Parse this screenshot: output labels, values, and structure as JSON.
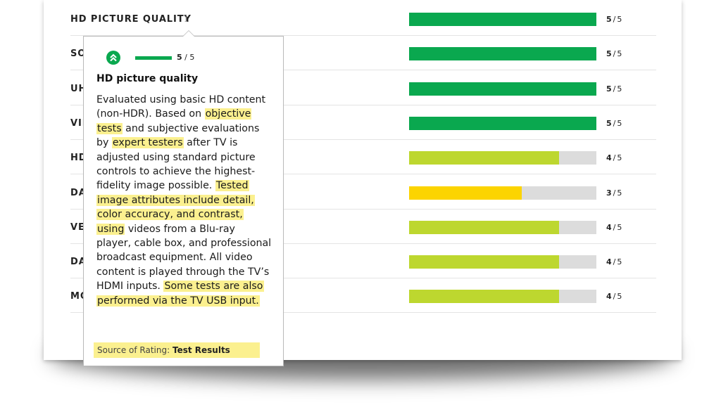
{
  "ratings": [
    {
      "label": "HD PICTURE QUALITY",
      "score": 5,
      "max": 5,
      "color": "#0aa84f"
    },
    {
      "label": "SO",
      "score": 5,
      "max": 5,
      "color": "#0aa84f"
    },
    {
      "label": "UH",
      "score": 5,
      "max": 5,
      "color": "#0aa84f"
    },
    {
      "label": "VIE",
      "score": 5,
      "max": 5,
      "color": "#0aa84f"
    },
    {
      "label": "HD",
      "score": 4,
      "max": 5,
      "color": "#bdd72f"
    },
    {
      "label": "DA",
      "score": 3,
      "max": 5,
      "color": "#fcd400"
    },
    {
      "label": "VE",
      "score": 4,
      "max": 5,
      "color": "#bdd72f"
    },
    {
      "label": "DA",
      "score": 4,
      "max": 5,
      "color": "#bdd72f"
    },
    {
      "label": "MO",
      "score": 4,
      "max": 5,
      "color": "#bdd72f"
    }
  ],
  "slash": "/",
  "info_icon": "i",
  "tooltip": {
    "icon": "double-chevron-up-icon",
    "score": 5,
    "max": 5,
    "level_fraction": 1.0,
    "title": "HD picture quality",
    "body_1": "Evaluated using basic HD content (non-HDR). Based on ",
    "hl_1": "objective tests",
    "body_2": " and subjective evaluations by ",
    "hl_2": "expert testers",
    "body_3": " after TV is adjusted using standard picture controls to achieve the highest-fidelity image possible. ",
    "hl_3": "Tested image attributes include detail, color accuracy, and contrast, using",
    "body_4": " videos from a Blu-ray player, cable box, and professional broadcast equipment. All video content is played through the TV’s HDMI inputs. ",
    "hl_4": "Some tests are also performed via the TV USB input.",
    "source_label": "Source of Rating:",
    "source_value": "Test Results",
    "highlight_color": "#fbf08f"
  }
}
